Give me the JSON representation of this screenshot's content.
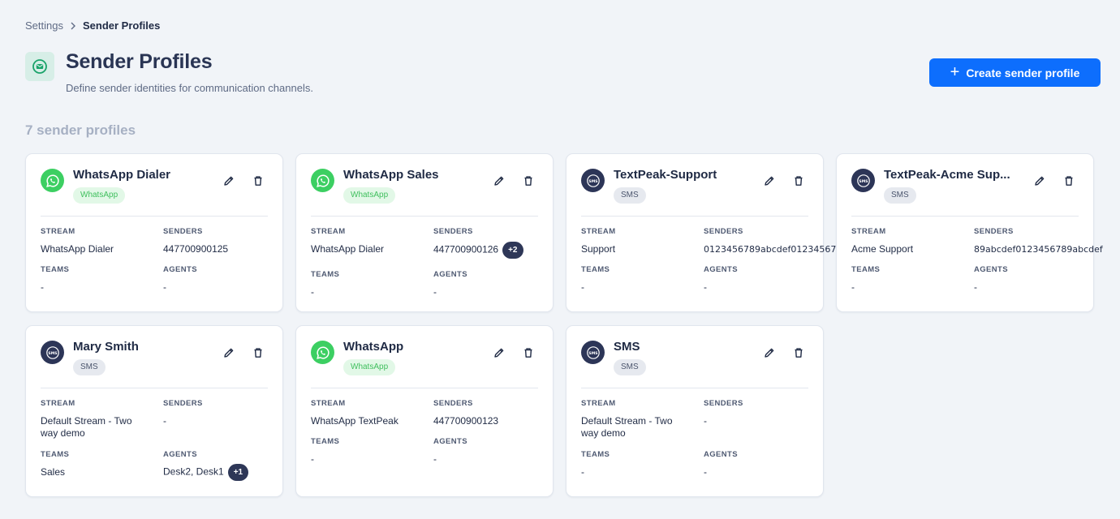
{
  "breadcrumb": {
    "parent": "Settings",
    "current": "Sender Profiles"
  },
  "header": {
    "title": "Sender Profiles",
    "subtitle": "Define sender identities for communication channels.",
    "icon": "envelope-icon",
    "accent": "#d7eee7"
  },
  "actions": {
    "create_label": "Create sender profile",
    "primary_color": "#0d6efd"
  },
  "summary": {
    "count_label": "7 sender profiles"
  },
  "labels": {
    "stream": "STREAM",
    "senders": "SENDERS",
    "teams": "TEAMS",
    "agents": "AGENTS"
  },
  "cards": [
    {
      "title": "WhatsApp Dialer",
      "channel": "WhatsApp",
      "stream": "WhatsApp Dialer",
      "senders": "447700900125",
      "senders_extra": "",
      "teams": "-",
      "agents": "-",
      "agents_extra": ""
    },
    {
      "title": "WhatsApp Sales",
      "channel": "WhatsApp",
      "stream": "WhatsApp Dialer",
      "senders": "447700900126",
      "senders_extra": "+2",
      "teams": "-",
      "agents": "-",
      "agents_extra": ""
    },
    {
      "title": "TextPeak-Support",
      "channel": "SMS",
      "stream": "Support",
      "senders": "0123456789abcdef01234567",
      "senders_extra": "",
      "teams": "-",
      "agents": "-",
      "agents_extra": ""
    },
    {
      "title": "TextPeak-Acme Sup...",
      "channel": "SMS",
      "stream": "Acme Support",
      "senders": "89abcdef0123456789abcdef",
      "senders_extra": "",
      "teams": "-",
      "agents": "-",
      "agents_extra": ""
    },
    {
      "title": "Mary Smith",
      "channel": "SMS",
      "stream": "Default Stream - Two way demo",
      "senders": "-",
      "senders_extra": "",
      "teams": "Sales",
      "agents": "Desk2,  Desk1",
      "agents_extra": "+1"
    },
    {
      "title": "WhatsApp",
      "channel": "WhatsApp",
      "stream": "WhatsApp TextPeak",
      "senders": "447700900123",
      "senders_extra": "",
      "teams": "-",
      "agents": "-",
      "agents_extra": ""
    },
    {
      "title": "SMS",
      "channel": "SMS",
      "stream": "Default Stream - Two way demo",
      "senders": "-",
      "senders_extra": "",
      "teams": "-",
      "agents": "-",
      "agents_extra": ""
    }
  ],
  "colors": {
    "whatsapp": "#3ccf62",
    "sms": "#2c3557",
    "badge": "#2e3757",
    "background": "#f1f4f8"
  }
}
